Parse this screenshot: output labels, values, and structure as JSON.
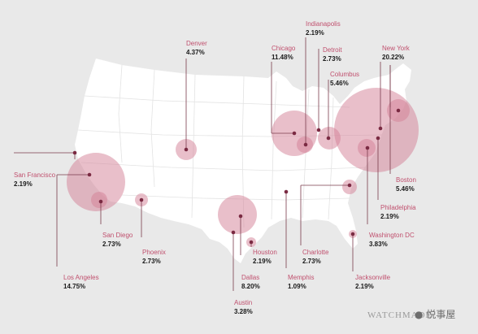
{
  "map": {
    "colors": {
      "background": "#e9e9e9",
      "land": "#ffffff",
      "bubble": "#d47f96",
      "dot": "#7a2a42",
      "city_name": "#c0506e",
      "percent": "#1a1a1a"
    },
    "cities": [
      {
        "key": "denver",
        "name": "Denver",
        "share": "4.37%"
      },
      {
        "key": "chicago",
        "name": "Chicago",
        "share": "11.48%"
      },
      {
        "key": "indianapolis",
        "name": "Indianapolis",
        "share": "2.19%"
      },
      {
        "key": "detroit",
        "name": "Detroit",
        "share": "2.73%"
      },
      {
        "key": "columbus",
        "name": "Columbus",
        "share": "5.46%"
      },
      {
        "key": "new_york",
        "name": "New York",
        "share": "20.22%"
      },
      {
        "key": "san_francisco",
        "name": "San Francisco",
        "share": "2.19%"
      },
      {
        "key": "san_diego",
        "name": "San Diego",
        "share": "2.73%"
      },
      {
        "key": "phoenix",
        "name": "Phoenix",
        "share": "2.73%"
      },
      {
        "key": "los_angeles",
        "name": "Los Angeles",
        "share": "14.75%"
      },
      {
        "key": "houston",
        "name": "Houston",
        "share": "2.19%"
      },
      {
        "key": "dallas",
        "name": "Dallas",
        "share": "8.20%"
      },
      {
        "key": "austin",
        "name": "Austin",
        "share": "3.28%"
      },
      {
        "key": "memphis",
        "name": "Memphis",
        "share": "1.09%"
      },
      {
        "key": "charlotte",
        "name": "Charlotte",
        "share": "2.73%"
      },
      {
        "key": "jacksonville",
        "name": "Jacksonville",
        "share": "2.19%"
      },
      {
        "key": "washington_dc",
        "name": "Washington DC",
        "share": "3.83%"
      },
      {
        "key": "philadelphia",
        "name": "Philadelphia",
        "share": "2.19%"
      },
      {
        "key": "boston",
        "name": "Boston",
        "share": "5.46%"
      }
    ],
    "watermark": {
      "brand": "WATCHMADE",
      "logo_text": "悦事屋"
    }
  }
}
